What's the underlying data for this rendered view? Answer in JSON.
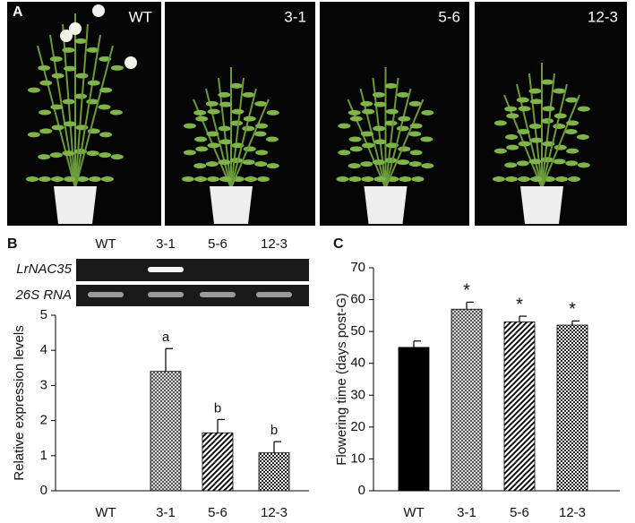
{
  "panels": {
    "a": {
      "label": "A",
      "photo_labels": [
        "WT",
        "3-1",
        "5-6",
        "12-3"
      ]
    },
    "b": {
      "label": "B",
      "gel": {
        "lanes": [
          "WT",
          "3-1",
          "5-6",
          "12-3"
        ],
        "rows": [
          "LrNAC35",
          "26S RNA"
        ]
      }
    },
    "c": {
      "label": "C"
    }
  },
  "chart_data": [
    {
      "type": "bar",
      "y_label": "Relative expression levels",
      "categories": [
        "WT",
        "3-1",
        "5-6",
        "12-3"
      ],
      "values": [
        0,
        3.4,
        1.65,
        1.08
      ],
      "errors": [
        0,
        0.65,
        0.38,
        0.32
      ],
      "annotations": [
        null,
        "a",
        "b",
        "b"
      ],
      "fills": [
        "solid",
        "crosshatch",
        "diagonal",
        "checker"
      ],
      "ylim": [
        0,
        5
      ],
      "yticks": [
        0,
        1,
        2,
        3,
        4,
        5
      ]
    },
    {
      "type": "bar",
      "y_label": "Flowering time (days post-G)",
      "categories": [
        "WT",
        "3-1",
        "5-6",
        "12-3"
      ],
      "values": [
        45,
        57,
        53,
        52
      ],
      "errors": [
        2,
        2.2,
        1.8,
        1.3
      ],
      "annotations": [
        null,
        "*",
        "*",
        "*"
      ],
      "fills": [
        "solid",
        "crosshatch",
        "diagonal",
        "checker"
      ],
      "ylim": [
        0,
        70
      ],
      "yticks": [
        0,
        10,
        20,
        30,
        40,
        50,
        60,
        70
      ]
    }
  ]
}
